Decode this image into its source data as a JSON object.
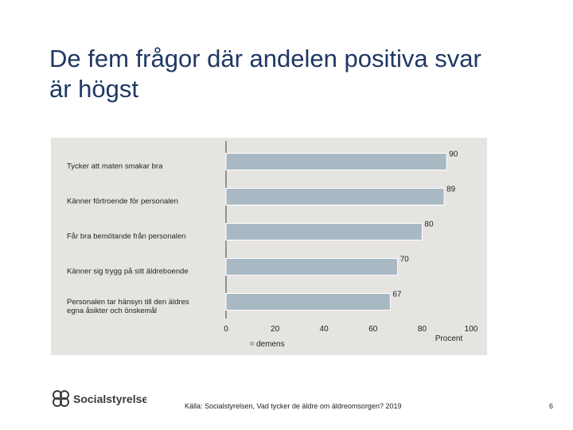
{
  "slide": {
    "title_line1": "De fem frågor där andelen positiva svar",
    "title_line2": "är högst",
    "source": "Källa: Socialstyrelsen, Vad tycker de äldre om äldreomsorgen? 2019",
    "page_number": "6",
    "logo_text": "Socialstyrelsen"
  },
  "chart_data": {
    "type": "bar",
    "orientation": "horizontal",
    "categories": [
      [
        "Tycker att maten smakar bra"
      ],
      [
        "Känner förtroende för personalen"
      ],
      [
        "Får bra bemötande från personalen"
      ],
      [
        "Känner sig trygg på sitt äldreboende"
      ],
      [
        "Personalen tar hänsyn till den äldres",
        "egna åsikter och önskemål"
      ]
    ],
    "series": [
      {
        "name": "demens",
        "values": [
          90,
          89,
          80,
          70,
          67
        ],
        "color": "#a9b9c4"
      }
    ],
    "xlim": [
      0,
      100
    ],
    "xticks": [
      0,
      20,
      40,
      60,
      80,
      100
    ],
    "xlabel": "Procent",
    "grid": false,
    "legend_position": "bottom",
    "background_color": "#e6e4e1"
  }
}
